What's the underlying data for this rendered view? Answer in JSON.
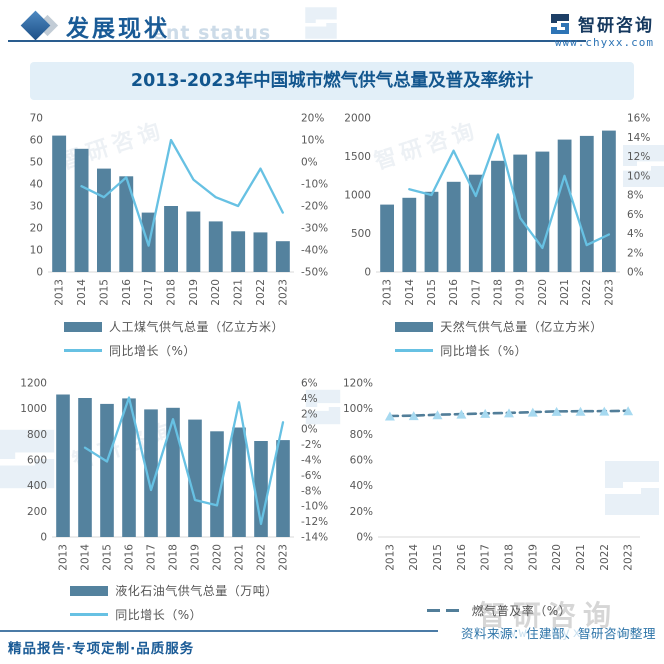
{
  "header": {
    "section_title": "发展现状",
    "watermark_text": "ent status",
    "brand_name": "智研咨询",
    "brand_url": "www.chyxx.com"
  },
  "title_banner": "2013-2023年中国城市燃气供气总量及普及率统计",
  "source_note": "资料来源：住建部、智研咨询整理",
  "footer": {
    "slogan": "精品报告·专项定制·品质服务"
  },
  "watermark": {
    "logo_text": "智研咨询",
    "url": "www.chyxx.com"
  },
  "colors": {
    "bar": "#54829e",
    "line": "#67c1e3",
    "dashed_line": "#527e99",
    "marker": "#a6d9f0",
    "axis_text": "#595959",
    "baseline": "#d9d9d9",
    "accent": "#1a5b96",
    "banner_bg": "#e2eff8",
    "source_text": "#2e74a8"
  },
  "chart_data": [
    {
      "type": "bar",
      "categories": [
        "2013",
        "2014",
        "2015",
        "2016",
        "2017",
        "2018",
        "2019",
        "2020",
        "2021",
        "2022",
        "2023"
      ],
      "series": [
        {
          "name": "人工煤气供气总量（亿立方米）",
          "kind": "bar",
          "axis": "left",
          "values": [
            62,
            56,
            47,
            43.5,
            27,
            30,
            27.5,
            23,
            18.5,
            18,
            14
          ]
        },
        {
          "name": "同比增长（%）",
          "kind": "line",
          "axis": "right",
          "values": [
            null,
            -11,
            -16,
            -7,
            -38,
            10,
            -8,
            -16,
            -20,
            -3,
            -23
          ]
        }
      ],
      "y_left": {
        "min": 0,
        "max": 70,
        "step": 10,
        "format": "number"
      },
      "y_right": {
        "min": -50,
        "max": 20,
        "step": 10,
        "format": "percent"
      }
    },
    {
      "type": "bar",
      "categories": [
        "2013",
        "2014",
        "2015",
        "2016",
        "2017",
        "2018",
        "2019",
        "2020",
        "2021",
        "2022",
        "2023"
      ],
      "series": [
        {
          "name": "天然气供气总量（亿立方米）",
          "kind": "bar",
          "axis": "left",
          "values": [
            875,
            964,
            1041,
            1172,
            1264,
            1444,
            1525,
            1564,
            1720,
            1768,
            1837
          ]
        },
        {
          "name": "同比增长（%）",
          "kind": "line",
          "axis": "right",
          "values": [
            null,
            8.6,
            8.0,
            12.6,
            7.9,
            14.3,
            5.6,
            2.5,
            10.0,
            2.8,
            3.9
          ]
        }
      ],
      "y_left": {
        "min": 0,
        "max": 2000,
        "step": 500,
        "format": "number"
      },
      "y_right": {
        "min": 0,
        "max": 16,
        "step": 2,
        "format": "percent"
      }
    },
    {
      "type": "bar",
      "categories": [
        "2013",
        "2014",
        "2015",
        "2016",
        "2017",
        "2018",
        "2019",
        "2020",
        "2021",
        "2022",
        "2023"
      ],
      "series": [
        {
          "name": "液化石油气供气总量（万吨）",
          "kind": "bar",
          "axis": "left",
          "values": [
            1110,
            1083,
            1037,
            1080,
            994,
            1007,
            915,
            824,
            853,
            748,
            755
          ]
        },
        {
          "name": "同比增长（%）",
          "kind": "line",
          "axis": "right",
          "values": [
            null,
            -2.4,
            -4.2,
            4.1,
            -7.9,
            1.3,
            -9.2,
            -9.9,
            3.5,
            -12.3,
            0.9
          ]
        }
      ],
      "y_left": {
        "min": 0,
        "max": 1200,
        "step": 200,
        "format": "number"
      },
      "y_right": {
        "min": -14,
        "max": 6,
        "step": 2,
        "format": "percent"
      }
    },
    {
      "type": "line",
      "categories": [
        "2013",
        "2014",
        "2015",
        "2016",
        "2017",
        "2018",
        "2019",
        "2020",
        "2021",
        "2022",
        "2023"
      ],
      "series": [
        {
          "name": "燃气普及率（%）",
          "kind": "line",
          "axis": "left",
          "dashed": true,
          "marker": "triangle",
          "values": [
            94.3,
            94.6,
            95.3,
            95.8,
            96.3,
            96.7,
            97.3,
            97.9,
            98.0,
            98.1,
            98.3
          ]
        }
      ],
      "y_left": {
        "min": 0,
        "max": 120,
        "step": 20,
        "format": "percent"
      }
    }
  ]
}
